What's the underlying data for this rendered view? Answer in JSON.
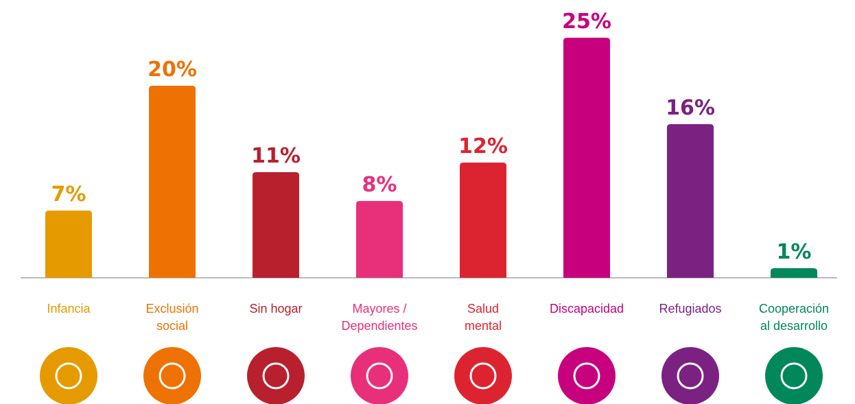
{
  "chart_data": {
    "type": "bar",
    "categories": [
      "Infancia",
      "Exclusión\nsocial",
      "Sin hogar",
      "Mayores /\nDependientes",
      "Salud\nmental",
      "Discapacidad",
      "Refugiados",
      "Cooperación\nal desarrollo"
    ],
    "values": [
      7,
      20,
      11,
      8,
      12,
      25,
      16,
      1
    ],
    "value_labels": [
      "7%",
      "20%",
      "11%",
      "8%",
      "12%",
      "25%",
      "16%",
      "1%"
    ],
    "colors": [
      "#e59a00",
      "#ee7203",
      "#b8202e",
      "#e8307a",
      "#dc2430",
      "#c7007d",
      "#7b2182",
      "#00875a"
    ],
    "ylim": [
      0,
      25
    ]
  }
}
